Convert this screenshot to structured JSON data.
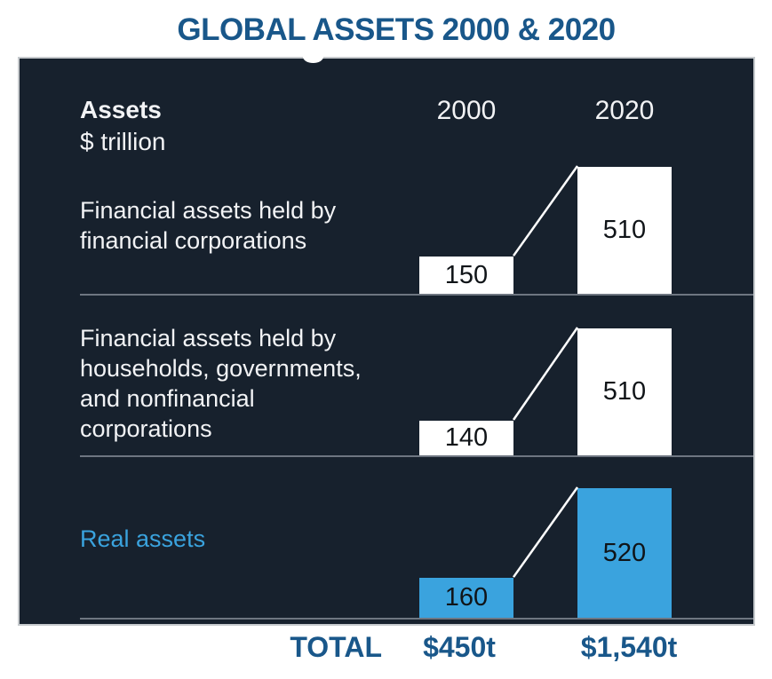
{
  "title": "GLOBAL ASSETS 2000 & 2020",
  "panel_header": {
    "title": "Assets",
    "subtitle": "$ trillion"
  },
  "totals_row": {
    "label": "TOTAL",
    "col_2000": "$450t",
    "col_2020": "$1,540t"
  },
  "colors": {
    "page_bg": "#ffffff",
    "panel_bg": "#17212d",
    "panel_border": "#c6cacd",
    "heading_blue": "#19578a",
    "bar_white": "#ffffff",
    "bar_blue": "#3aa3de",
    "separator_gray": "#6e7681",
    "label_white": "#f2f3f5",
    "value_text": "#101418",
    "connector_white": "#ffffff"
  },
  "chart_data": {
    "type": "bar",
    "title": "GLOBAL ASSETS 2000 & 2020",
    "unit": "$ trillion",
    "columns": [
      "2000",
      "2020"
    ],
    "rows": [
      {
        "label": "Financial assets held by\nfinancial corporations",
        "values": {
          "2000": 150,
          "2020": 510
        },
        "bar_color": "#ffffff",
        "label_color": "#f2f3f5"
      },
      {
        "label": "Financial assets held by\nhouseholds, governments,\nand nonfinancial\ncorporations",
        "values": {
          "2000": 140,
          "2020": 510
        },
        "bar_color": "#ffffff",
        "label_color": "#f2f3f5"
      },
      {
        "label": "Real assets",
        "values": {
          "2000": 160,
          "2020": 520
        },
        "bar_color": "#3aa3de",
        "label_color": "#3aa3de"
      }
    ],
    "totals": {
      "label": "TOTAL",
      "2000": "$450t",
      "2020": "$1,540t"
    },
    "layout": {
      "legend": false,
      "grid": false,
      "value_labels": "inside bars",
      "note": "two columns (2000, 2020) compared per row with connector line"
    }
  }
}
